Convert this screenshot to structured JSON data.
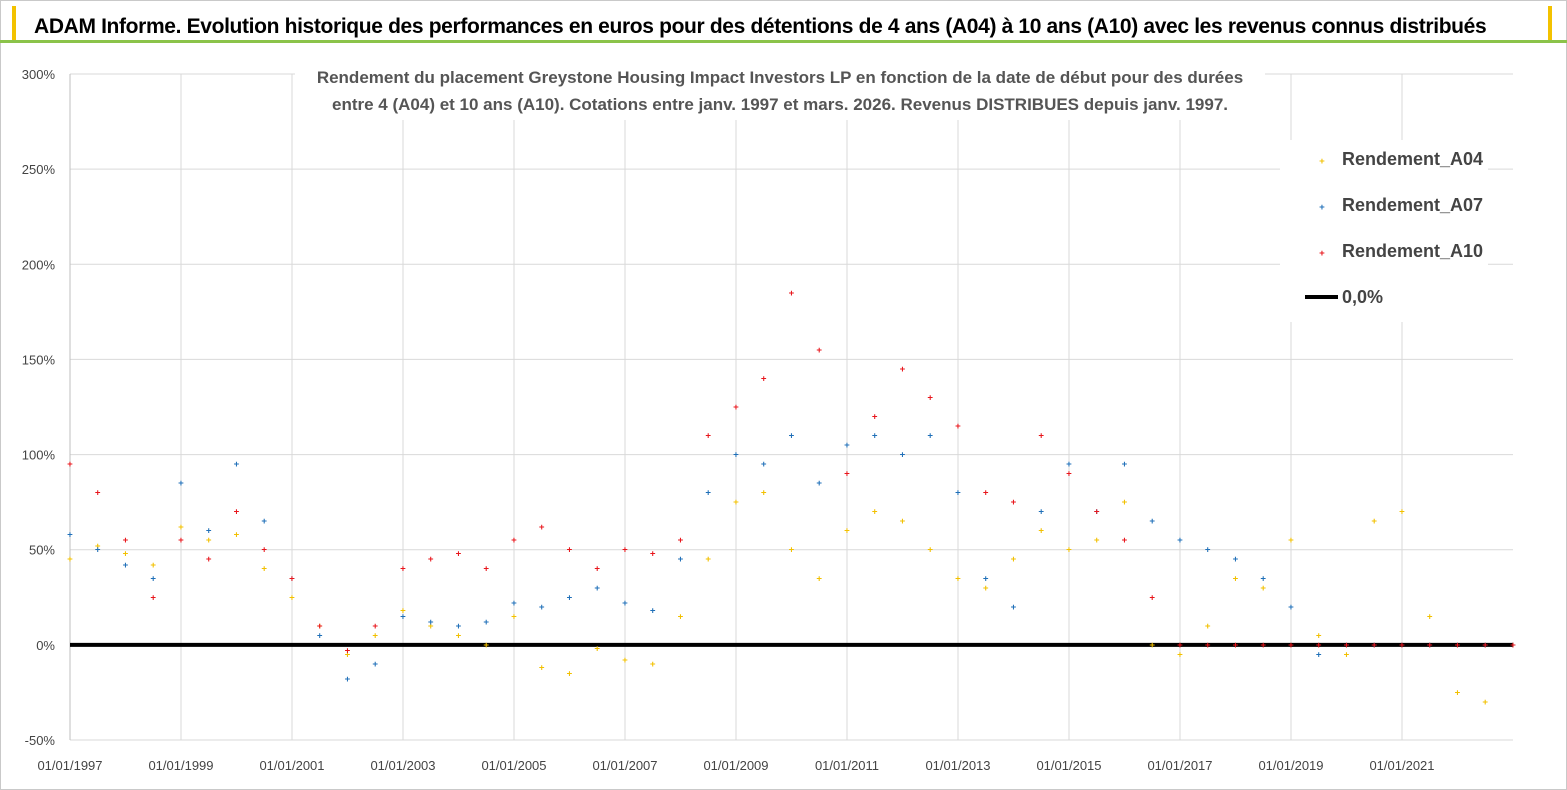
{
  "header": {
    "title": "ADAM Informe. Evolution historique des performances en euros pour des détentions de 4 ans (A04) à 10 ans (A10) avec les revenus connus distribués"
  },
  "colors": {
    "A04": "#f2c000",
    "A07": "#1f6fb8",
    "A10": "#e8151b",
    "zero": "#000000",
    "grid": "#d9d9d9",
    "banner_accent": "#f3c200",
    "banner_line": "#8bc34a"
  },
  "chart_data": {
    "type": "scatter",
    "title_lines": [
      "Rendement du placement Greystone Housing Impact Investors LP en fonction de la date de début pour des durées",
      "entre 4 (A04) et 10 ans (A10).  Cotations entre janv. 1997 et mars. 2026. Revenus DISTRIBUES depuis janv. 1997."
    ],
    "x_tick_labels": [
      "01/01/1997",
      "01/01/1999",
      "01/01/2001",
      "01/01/2003",
      "01/01/2005",
      "01/01/2007",
      "01/01/2009",
      "01/01/2011",
      "01/01/2013",
      "01/01/2015",
      "01/01/2017",
      "01/01/2019",
      "01/01/2021"
    ],
    "y_tick_labels": [
      "300%",
      "250%",
      "200%",
      "150%",
      "100%",
      "50%",
      "0%",
      "-50%"
    ],
    "xlim": [
      1997.0,
      2023.0
    ],
    "ylim": [
      -50,
      300
    ],
    "y_unit": "%",
    "legend": {
      "position": "right",
      "entries": [
        "Rendement_A04",
        "Rendement_A07",
        "Rendement_A10",
        "0,0%"
      ]
    },
    "series": [
      {
        "name": "Rendement_A04",
        "marker": "+",
        "x": [
          1997.0,
          1997.5,
          1998.0,
          1998.5,
          1999.0,
          1999.5,
          2000.0,
          2000.5,
          2001.0,
          2001.5,
          2002.0,
          2002.5,
          2003.0,
          2003.5,
          2004.0,
          2004.5,
          2005.0,
          2005.5,
          2006.0,
          2006.5,
          2007.0,
          2007.5,
          2008.0,
          2008.5,
          2009.0,
          2009.5,
          2010.0,
          2010.5,
          2011.0,
          2011.5,
          2012.0,
          2012.5,
          2013.0,
          2013.5,
          2014.0,
          2014.5,
          2015.0,
          2015.5,
          2016.0,
          2016.5,
          2017.0,
          2017.5,
          2018.0,
          2018.5,
          2019.0,
          2019.5,
          2020.0,
          2020.5,
          2021.0,
          2021.5,
          2022.0,
          2022.5,
          2023.0
        ],
        "y": [
          45,
          52,
          48,
          42,
          62,
          55,
          58,
          40,
          25,
          10,
          -5,
          5,
          18,
          10,
          5,
          0,
          15,
          -12,
          -15,
          -2,
          -8,
          -10,
          15,
          45,
          75,
          80,
          50,
          35,
          60,
          70,
          65,
          50,
          35,
          30,
          45,
          60,
          50,
          55,
          75,
          0,
          -5,
          10,
          35,
          30,
          55,
          5,
          -5,
          65,
          70,
          15,
          -25,
          -30,
          0
        ]
      },
      {
        "name": "Rendement_A07",
        "marker": "+",
        "x": [
          1997.0,
          1997.5,
          1998.0,
          1998.5,
          1999.0,
          1999.5,
          2000.0,
          2000.5,
          2001.0,
          2001.5,
          2002.0,
          2002.5,
          2003.0,
          2003.5,
          2004.0,
          2004.5,
          2005.0,
          2005.5,
          2006.0,
          2006.5,
          2007.0,
          2007.5,
          2008.0,
          2008.5,
          2009.0,
          2009.5,
          2010.0,
          2010.5,
          2011.0,
          2011.5,
          2012.0,
          2012.5,
          2013.0,
          2013.5,
          2014.0,
          2014.5,
          2015.0,
          2015.5,
          2016.0,
          2016.5,
          2017.0,
          2017.5,
          2018.0,
          2018.5,
          2019.0,
          2019.5,
          2020.0,
          2020.5,
          2021.0,
          2021.5,
          2022.0,
          2022.5,
          2023.0
        ],
        "y": [
          58,
          50,
          42,
          35,
          85,
          60,
          95,
          65,
          35,
          5,
          -18,
          -10,
          15,
          12,
          10,
          12,
          22,
          20,
          25,
          30,
          22,
          18,
          45,
          80,
          100,
          95,
          110,
          85,
          105,
          110,
          100,
          110,
          80,
          35,
          20,
          70,
          95,
          70,
          95,
          65,
          55,
          50,
          45,
          35,
          20,
          -5,
          0,
          0,
          0,
          0,
          0,
          0,
          0
        ]
      },
      {
        "name": "Rendement_A10",
        "marker": "+",
        "x": [
          1997.0,
          1997.5,
          1998.0,
          1998.5,
          1999.0,
          1999.5,
          2000.0,
          2000.5,
          2001.0,
          2001.5,
          2002.0,
          2002.5,
          2003.0,
          2003.5,
          2004.0,
          2004.5,
          2005.0,
          2005.5,
          2006.0,
          2006.5,
          2007.0,
          2007.5,
          2008.0,
          2008.5,
          2009.0,
          2009.5,
          2010.0,
          2010.5,
          2011.0,
          2011.5,
          2012.0,
          2012.5,
          2013.0,
          2013.5,
          2014.0,
          2014.5,
          2015.0,
          2015.5,
          2016.0,
          2016.5,
          2017.0,
          2017.5,
          2018.0,
          2018.5,
          2019.0,
          2019.5,
          2020.0,
          2020.5,
          2021.0,
          2021.5,
          2022.0,
          2022.5,
          2023.0
        ],
        "y": [
          95,
          80,
          55,
          25,
          55,
          45,
          70,
          50,
          35,
          10,
          -3,
          10,
          40,
          45,
          48,
          40,
          55,
          62,
          50,
          40,
          50,
          48,
          55,
          110,
          125,
          140,
          185,
          155,
          90,
          120,
          145,
          130,
          115,
          80,
          75,
          110,
          90,
          70,
          55,
          25,
          0,
          0,
          0,
          0,
          0,
          0,
          0,
          0,
          0,
          0,
          0,
          0,
          0
        ]
      },
      {
        "name": "0,0%",
        "type": "line",
        "x": [
          1997.0,
          2023.0
        ],
        "y": [
          0,
          0
        ]
      }
    ]
  }
}
